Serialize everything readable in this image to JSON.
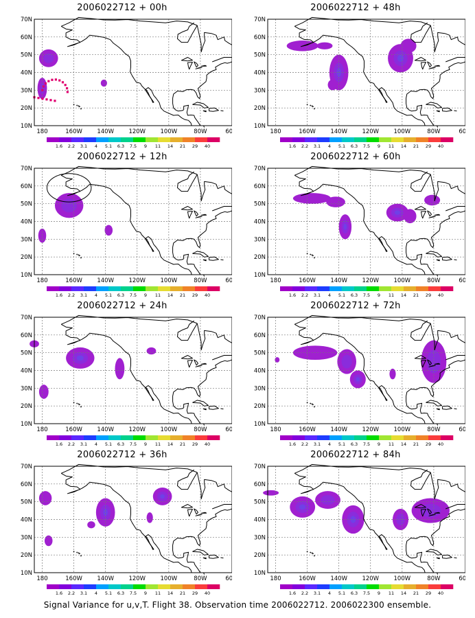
{
  "lon_ticks": [
    "180",
    "160W",
    "140W",
    "120W",
    "100W",
    "80W",
    "60W"
  ],
  "lat_ticks": [
    "10N",
    "20N",
    "30N",
    "40N",
    "50N",
    "60N",
    "70N"
  ],
  "colorbar": {
    "labels": [
      "1.6",
      "2.2",
      "3.1",
      "4",
      "5.1",
      "6.3",
      "7.5",
      "9",
      "11",
      "14",
      "21",
      "29",
      "40"
    ],
    "colors": [
      "#a000c8",
      "#8200dc",
      "#5a28ff",
      "#1e3cff",
      "#00a0ff",
      "#00c8c8",
      "#00d28c",
      "#00dc00",
      "#a0e632",
      "#e6dc32",
      "#e6af2d",
      "#f08228",
      "#fa3c3c",
      "#dc0064"
    ]
  },
  "colors": {
    "blob_outer": "#a020d0",
    "blob_inner": "#8a2cdc",
    "blob_core": "#7040e6",
    "track": "#e0006e"
  },
  "panels": [
    {
      "title": "2006022712 + 00h"
    },
    {
      "title": "2006022712 + 48h"
    },
    {
      "title": "2006022712 + 12h"
    },
    {
      "title": "2006022712 + 60h"
    },
    {
      "title": "2006022712 + 24h"
    },
    {
      "title": "2006022712 + 72h"
    },
    {
      "title": "2006022712 + 36h"
    },
    {
      "title": "2006022712 + 84h"
    }
  ],
  "caption": "Signal Variance for u,v,T. Flight 38. Observation time 2006022712. 2006022300 ensemble."
}
